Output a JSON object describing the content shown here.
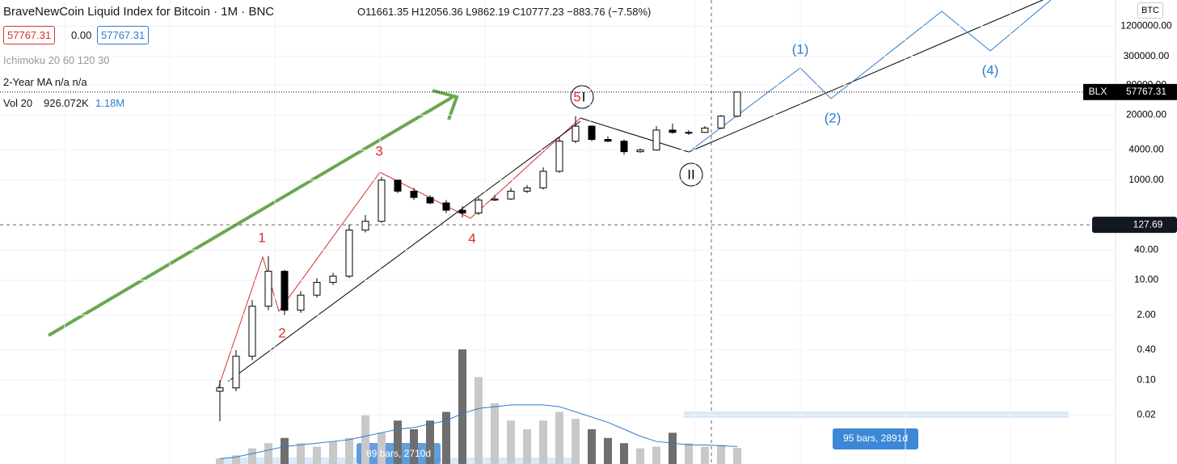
{
  "chart_data": {
    "type": "candlestick",
    "title": "BraveNewCoin Liquid Index for Bitcoin · 1M · BNC",
    "ohlc_legend": "O11661.35 H12056.36 L9862.19 C10777.23 −883.76 (−7.58%)",
    "sell_box": "57767.31",
    "spread": "0.00",
    "buy_box": "57767.31",
    "indicators": [
      "Ichimoku 20 60 120 30",
      "2-Year MA  n/a n/a",
      "Vol 20"
    ],
    "volume_legend": [
      "926.072K",
      "1.18M"
    ],
    "symbol": "BLX",
    "currency": "BTC",
    "last_price": {
      "value": 57767.31,
      "label": "57767.31"
    },
    "crosshair": 127.69,
    "log_scale": true,
    "ylim": [
      0.0021,
      4000000
    ],
    "yticks": [
      {
        "value": 1200000,
        "label": "1200000.00"
      },
      {
        "value": 300000,
        "label": "300000.00"
      },
      {
        "value": 80000,
        "label": "80000.00"
      },
      {
        "value": 20000,
        "label": "20000.00"
      },
      {
        "value": 4000,
        "label": "4000.00"
      },
      {
        "value": 1000,
        "label": "1000.00"
      },
      {
        "value": 40,
        "label": "40.00"
      },
      {
        "value": 10,
        "label": "10.00"
      },
      {
        "value": 2,
        "label": "2.00"
      },
      {
        "value": 0.4,
        "label": "0.40"
      },
      {
        "value": 0.1,
        "label": "0.10"
      },
      0.02
    ],
    "grid": true,
    "up_color": "#ffffff",
    "down_color": "#000000",
    "categories": [
      null,
      null,
      null,
      null,
      null,
      null,
      null,
      null,
      null,
      null,
      null,
      null,
      null,
      null,
      null,
      null,
      null,
      null,
      null,
      null,
      null,
      null,
      null,
      null,
      null,
      null,
      null,
      null,
      null,
      null,
      null,
      null,
      null
    ],
    "open": [
      0.06,
      0.07,
      0.3,
      3,
      15,
      2.5,
      5,
      9,
      12,
      100,
      150,
      1000,
      600,
      450,
      350,
      250,
      220,
      400,
      420,
      600,
      700,
      1500,
      6000,
      12000,
      6500,
      6000,
      3700,
      4000,
      10000,
      9000,
      9000,
      11000,
      19000
    ],
    "high": [
      0.1,
      0.4,
      4,
      30,
      16,
      6,
      11,
      14,
      130,
      200,
      1150,
      1000,
      700,
      500,
      400,
      300,
      450,
      500,
      700,
      800,
      1800,
      7000,
      19000,
      12500,
      7500,
      6500,
      4300,
      12000,
      13500,
      10000,
      12000,
      20000,
      58000
    ],
    "low": [
      0.015,
      0.06,
      0.25,
      2.5,
      2,
      2.2,
      4.5,
      8,
      11,
      90,
      140,
      550,
      400,
      330,
      220,
      180,
      200,
      380,
      400,
      550,
      650,
      1400,
      5500,
      6000,
      5800,
      3200,
      3500,
      3900,
      8500,
      8000,
      8800,
      10500,
      18000
    ],
    "close": [
      0.07,
      0.3,
      3,
      15,
      2.5,
      5,
      9,
      12,
      100,
      150,
      1000,
      600,
      450,
      350,
      250,
      220,
      400,
      420,
      600,
      700,
      1500,
      6000,
      12000,
      6500,
      6000,
      3700,
      4000,
      10000,
      9000,
      9000,
      11000,
      19000,
      57767.31
    ],
    "volume": [
      300,
      500,
      900,
      1200,
      1500,
      1200,
      1000,
      1300,
      1500,
      2800,
      1800,
      2500,
      2000,
      2500,
      3000,
      6600,
      5000,
      3500,
      2500,
      2000,
      2500,
      3000,
      2600,
      2000,
      1500,
      1200,
      900,
      1000,
      1800,
      1200,
      1000,
      1100,
      926
    ],
    "volume_ma": [
      300,
      400,
      600,
      800,
      1000,
      1100,
      1200,
      1300,
      1400,
      1600,
      1800,
      2000,
      2100,
      2300,
      2500,
      2900,
      3200,
      3300,
      3400,
      3400,
      3400,
      3300,
      3000,
      2700,
      2400,
      2000,
      1600,
      1300,
      1200,
      1100,
      1100,
      1050,
      1000
    ],
    "vlim": [
      0,
      6700
    ],
    "annotations": [
      "1",
      "2",
      "3",
      "4",
      "5",
      "I",
      "II",
      "(1)",
      "(2)",
      "(4)"
    ],
    "ranges": [
      "89 bars, 2710d",
      "95 bars, 2891d"
    ]
  }
}
